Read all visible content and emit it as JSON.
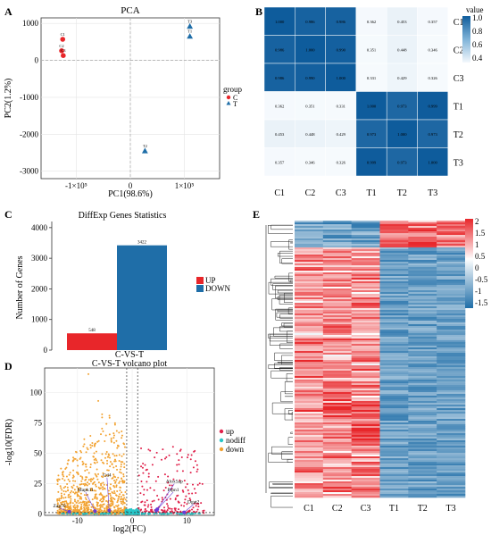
{
  "panel_letters": [
    "A",
    "B",
    "C",
    "D",
    "E"
  ],
  "colors": {
    "up_red": "#e8262a",
    "down_blue": "#1f6ea8",
    "dark_blue": "#0e5c9c",
    "volcano_up": "#e0204a",
    "volcano_down": "#f2a230",
    "volcano_nodiff": "#27c6c8",
    "label_purple": "#6a3bd8"
  },
  "chart_data": [
    {
      "panel": "A",
      "type": "scatter",
      "title": "PCA",
      "xlabel": "PC1(98.6%)",
      "ylabel": "PC2(1.2%)",
      "xlim": [
        -165000,
        165000
      ],
      "ylim": [
        -3200,
        1150
      ],
      "x_ticks": [
        {
          "v": -100000,
          "label": "-1×10⁵"
        },
        {
          "v": 0,
          "label": "0"
        },
        {
          "v": 100000,
          "label": "1×10⁵"
        }
      ],
      "y_ticks": [
        1000,
        0,
        -1000,
        -2000,
        -3000
      ],
      "legend_title": "group",
      "legend": [
        "C",
        "T"
      ],
      "points": [
        {
          "label": "C1",
          "group": "C",
          "x": -125000,
          "y": 570
        },
        {
          "label": "C2",
          "group": "C",
          "x": -127000,
          "y": 260
        },
        {
          "label": "C3",
          "group": "C",
          "x": -124000,
          "y": 130
        },
        {
          "label": "T1",
          "group": "T",
          "x": 110000,
          "y": 650
        },
        {
          "label": "T2",
          "group": "T",
          "x": 27000,
          "y": -2450
        },
        {
          "label": "T3",
          "group": "T",
          "x": 110000,
          "y": 920
        }
      ]
    },
    {
      "panel": "B",
      "type": "heatmap",
      "rows": [
        "C1",
        "C2",
        "C3",
        "T1",
        "T2",
        "T3"
      ],
      "cols": [
        "C1",
        "C2",
        "C3",
        "T1",
        "T2",
        "T3"
      ],
      "values": [
        [
          1.0,
          0.986,
          0.986,
          0.362,
          0.453,
          0.357
        ],
        [
          0.986,
          1.0,
          0.99,
          0.351,
          0.448,
          0.346
        ],
        [
          0.986,
          0.99,
          1.0,
          0.331,
          0.429,
          0.326
        ],
        [
          0.362,
          0.351,
          0.331,
          1.0,
          0.973,
          0.999
        ],
        [
          0.453,
          0.448,
          0.429,
          0.973,
          1.0,
          0.973
        ],
        [
          0.357,
          0.346,
          0.326,
          0.999,
          0.973,
          1.0
        ]
      ],
      "legend_title": "value",
      "legend_ticks": [
        1.0,
        0.8,
        0.6,
        0.4
      ],
      "range": [
        0.326,
        1.0
      ]
    },
    {
      "panel": "C",
      "type": "bar",
      "title": "DiffExp Genes Statistics",
      "ylabel": "Number of Genes",
      "categories": [
        "UP",
        "DOWN"
      ],
      "values": [
        548,
        3422
      ],
      "ylim": [
        0,
        4200
      ],
      "y_ticks": [
        0,
        1000,
        2000,
        3000,
        4000
      ],
      "legend": [
        "UP",
        "DOWN"
      ]
    },
    {
      "panel": "D",
      "type": "scatter",
      "super_title": "C-VS-T",
      "title": "C-VS-T volcano plot",
      "xlabel": "log2(FC)",
      "ylabel": "-log10(FDR)",
      "xlim": [
        -16,
        15
      ],
      "ylim": [
        -1,
        120
      ],
      "x_ticks": [
        -10,
        0,
        10
      ],
      "y_ticks": [
        0,
        25,
        50,
        75,
        100
      ],
      "legend": [
        "up",
        "nodiff",
        "down"
      ],
      "labeled_genes": [
        {
          "name": "Cd4",
          "x": -4.6,
          "y": 30
        },
        {
          "name": "Mapk11",
          "x": -8.5,
          "y": 18
        },
        {
          "name": "Zap70",
          "x": -13.3,
          "y": 5
        },
        {
          "name": "Alox5ap",
          "x": 7.7,
          "y": 25
        },
        {
          "name": "Ptpn1",
          "x": 7.5,
          "y": 18
        },
        {
          "name": "Dgat2",
          "x": 11.2,
          "y": 8
        }
      ]
    },
    {
      "panel": "E",
      "type": "heatmap",
      "cols": [
        "C1",
        "C2",
        "C3",
        "T1",
        "T2",
        "T3"
      ],
      "legend_ticks": [
        2,
        1.5,
        1,
        0.5,
        0,
        -0.5,
        -1,
        -1.5
      ],
      "range": [
        -1.7,
        2.1
      ]
    }
  ]
}
